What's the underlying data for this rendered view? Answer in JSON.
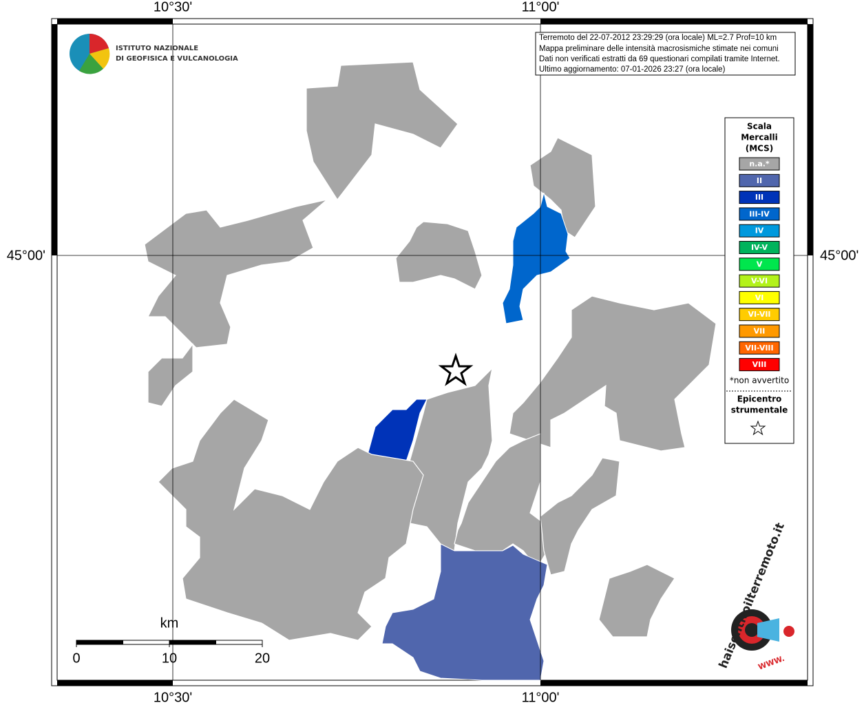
{
  "graticule": {
    "top": [
      "10°30'",
      "11°00'"
    ],
    "bottom": [
      "10°30'",
      "11°00'"
    ],
    "left": [
      "45°00'"
    ],
    "right": [
      "45°00'"
    ]
  },
  "logo": {
    "line1": "ISTITUTO NAZIONALE",
    "line2": "DI GEOFISICA E VULCANOLOGIA"
  },
  "info": [
    "Terremoto del 22-07-2012 23:29:29 (ora locale) ML=2.7 Prof=10 km",
    "Mappa preliminare delle intensità macrosismiche stimate nei comuni",
    "Dati non verificati estratti da 69 questionari compilati tramite Internet.",
    "Ultimo aggiornamento: 07-01-2026 23:27 (ora locale)"
  ],
  "legend": {
    "title_lines": [
      "Scala",
      "Mercalli",
      "(MCS)"
    ],
    "classes": [
      {
        "label": "n.a.*",
        "color": "#a6a6a6"
      },
      {
        "label": "II",
        "color": "#5066ad"
      },
      {
        "label": "III",
        "color": "#0033b8"
      },
      {
        "label": "III-IV",
        "color": "#0066cc"
      },
      {
        "label": "IV",
        "color": "#0099dd"
      },
      {
        "label": "IV-V",
        "color": "#00b35c"
      },
      {
        "label": "V",
        "color": "#00e64d"
      },
      {
        "label": "V-VI",
        "color": "#b3f21a"
      },
      {
        "label": "VI",
        "color": "#ffff00"
      },
      {
        "label": "VI-VII",
        "color": "#ffcc00"
      },
      {
        "label": "VII",
        "color": "#ff9900"
      },
      {
        "label": "VII-VIII",
        "color": "#ff6600"
      },
      {
        "label": "VIII",
        "color": "#ff0000"
      }
    ],
    "note": "*non avvertito",
    "epicenter_lines": [
      "Epicentro",
      "strumentale"
    ]
  },
  "scale": {
    "unit": "km",
    "ticks": [
      0,
      10,
      20
    ]
  },
  "badge": {
    "text": "haisentitoilterremoto.it",
    "www": "WWW."
  }
}
